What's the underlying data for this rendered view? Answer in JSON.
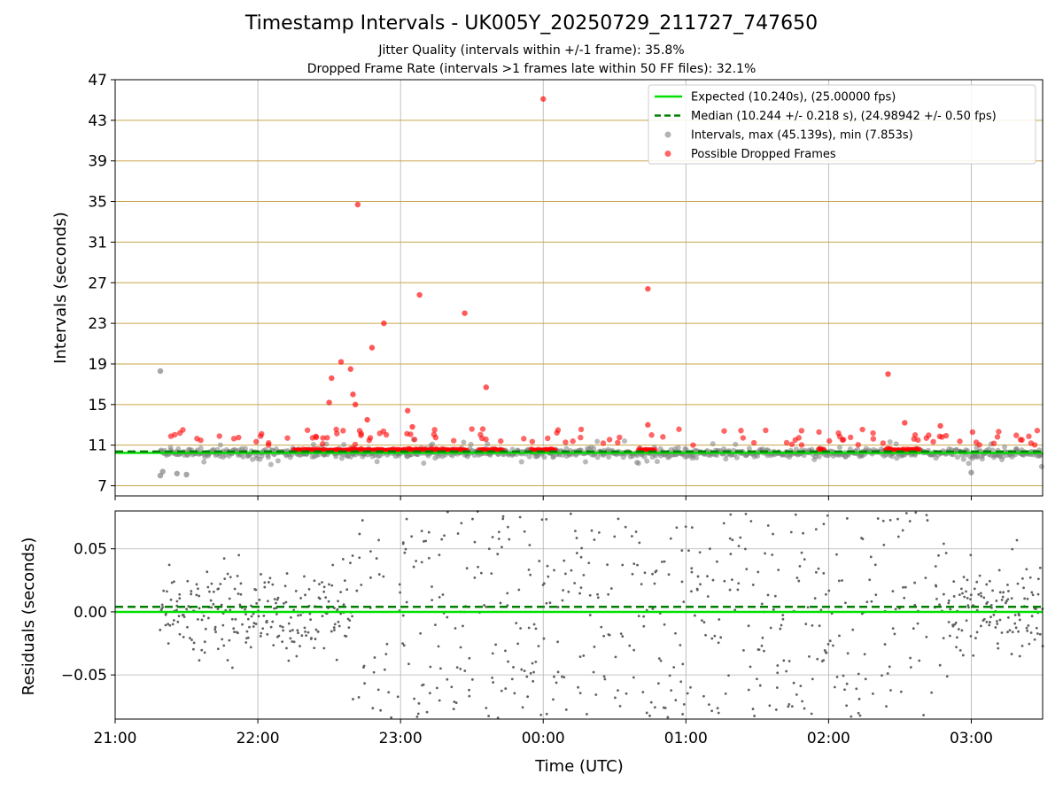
{
  "chart_data": {
    "type": "scatter",
    "title": "Timestamp Intervals - UK005Y_20250729_211727_747650",
    "subtitles": [
      "Jitter Quality (intervals within +/-1 frame): 35.8%",
      "Dropped Frame Rate (intervals >1 frames late within 50 FF files): 32.1%"
    ],
    "xlabel": "Time (UTC)",
    "x_ticks": [
      "21:00",
      "22:00",
      "23:00",
      "00:00",
      "01:00",
      "02:00",
      "03:00"
    ],
    "x_range": [
      "21:00",
      "03:30"
    ],
    "top_panel": {
      "ylabel": "Intervals (seconds)",
      "ylim": [
        6,
        47
      ],
      "y_ticks": [
        7,
        11,
        15,
        19,
        23,
        27,
        31,
        35,
        39,
        43,
        47
      ],
      "grid": true,
      "legend_position": "top-right",
      "legend": [
        "Expected (10.240s), (25.00000 fps)",
        "Median (10.244 +/- 0.218 s), (24.98942 +/- 0.50 fps)",
        "Intervals, max (45.139s), min (7.853s)",
        "Possible Dropped Frames"
      ],
      "expected_value": 10.24,
      "median_value": 10.244,
      "expected_color": "#00e000",
      "median_color": "#008000",
      "interval_color": "#808080",
      "dropped_color": "#ff0000",
      "grid_color": "#c8a64b",
      "dropped_outliers": [
        {
          "x": "22:42",
          "y": 34.7
        },
        {
          "x": "23:08",
          "y": 25.8
        },
        {
          "x": "23:27",
          "y": 24.0
        },
        {
          "x": "22:53",
          "y": 23.0
        },
        {
          "x": "22:48",
          "y": 20.6
        },
        {
          "x": "22:35",
          "y": 19.2
        },
        {
          "x": "22:39",
          "y": 18.5
        },
        {
          "x": "22:31",
          "y": 17.6
        },
        {
          "x": "23:36",
          "y": 16.7
        },
        {
          "x": "22:40",
          "y": 16.0
        },
        {
          "x": "22:30",
          "y": 15.2
        },
        {
          "x": "23:03",
          "y": 14.4
        },
        {
          "x": "00:00",
          "y": 45.1
        },
        {
          "x": "00:44",
          "y": 26.4
        },
        {
          "x": "02:25",
          "y": 18.0
        },
        {
          "x": "22:41",
          "y": 15.0
        },
        {
          "x": "22:46",
          "y": 13.5
        },
        {
          "x": "23:05",
          "y": 12.8
        },
        {
          "x": "00:44",
          "y": 13.0
        },
        {
          "x": "02:32",
          "y": 13.2
        },
        {
          "x": "02:47",
          "y": 12.9
        }
      ],
      "interval_outliers": [
        {
          "x": "21:19",
          "y": 18.3
        },
        {
          "x": "21:19",
          "y": 8.0
        },
        {
          "x": "21:20",
          "y": 8.4
        },
        {
          "x": "21:26",
          "y": 8.2
        },
        {
          "x": "21:30",
          "y": 8.1
        },
        {
          "x": "03:00",
          "y": 8.3
        }
      ]
    },
    "bottom_panel": {
      "ylabel": "Residuals (seconds)",
      "ylim": [
        -0.085,
        0.08
      ],
      "y_ticks": [
        -0.05,
        0.0,
        0.05
      ],
      "y_tick_labels": [
        "−0.05",
        "0.00",
        "0.05"
      ],
      "grid": true,
      "expected_residual": 0.0,
      "median_residual": 0.004,
      "point_color": "#606060",
      "x_start": "21:19",
      "x_end": "03:30"
    }
  }
}
